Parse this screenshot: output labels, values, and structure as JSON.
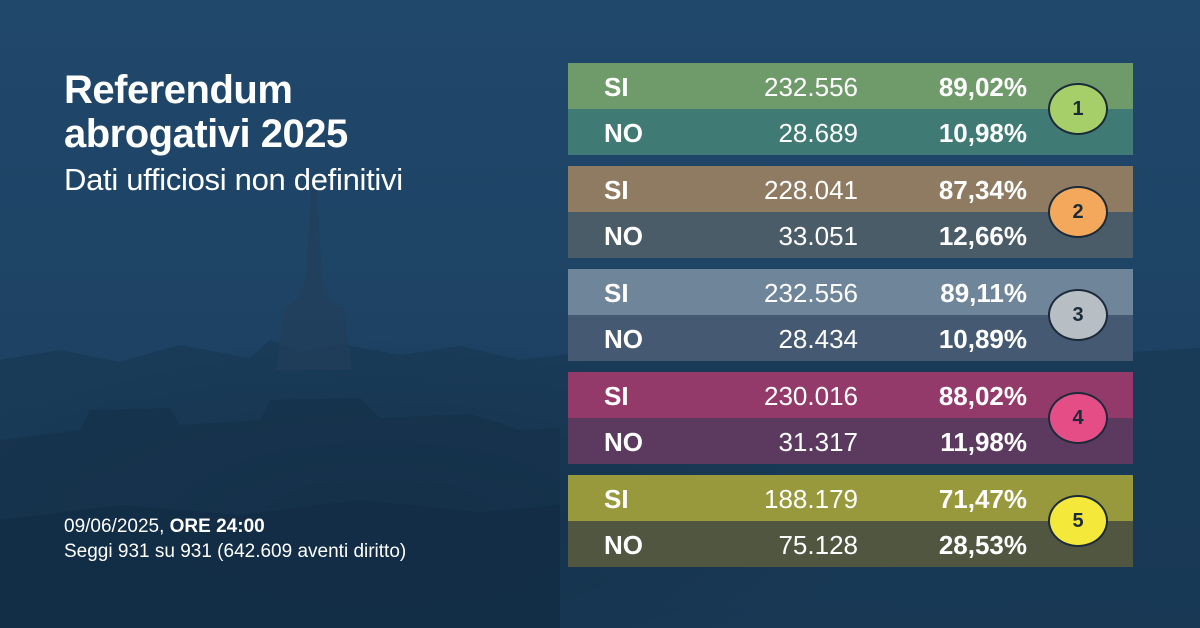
{
  "header": {
    "title_line1": "Referendum",
    "title_line2": "abrogativi 2025",
    "subtitle": "Dati ufficiosi non definitivi"
  },
  "footer": {
    "date": "09/06/2025, ",
    "time": "ORE 24:00",
    "seats": "Seggi 931 su 931 (642.609 aventi diritto)"
  },
  "results": [
    {
      "number": "1",
      "colors": {
        "si": "#6f9a6a",
        "no": "#3f7a74",
        "badge": "#a6cf6a"
      },
      "si": {
        "label": "SI",
        "votes": "232.556",
        "pct": "89,02%"
      },
      "no": {
        "label": "NO",
        "votes": "28.689",
        "pct": "10,98%"
      }
    },
    {
      "number": "2",
      "colors": {
        "si": "#8f7b62",
        "no": "#4a5c68",
        "badge": "#f3a85c"
      },
      "si": {
        "label": "SI",
        "votes": "228.041",
        "pct": "87,34%"
      },
      "no": {
        "label": "NO",
        "votes": "33.051",
        "pct": "12,66%"
      }
    },
    {
      "number": "3",
      "colors": {
        "si": "#6f8599",
        "no": "#455a72",
        "badge": "#b7bfc5"
      },
      "si": {
        "label": "SI",
        "votes": "232.556",
        "pct": "89,11%"
      },
      "no": {
        "label": "NO",
        "votes": "28.434",
        "pct": "10,89%"
      }
    },
    {
      "number": "4",
      "colors": {
        "si": "#943a6a",
        "no": "#5c3a60",
        "badge": "#e54d86"
      },
      "si": {
        "label": "SI",
        "votes": "230.016",
        "pct": "88,02%"
      },
      "no": {
        "label": "NO",
        "votes": "31.317",
        "pct": "11,98%"
      }
    },
    {
      "number": "5",
      "colors": {
        "si": "#98983c",
        "no": "#50563f",
        "badge": "#f4e83a"
      },
      "si": {
        "label": "SI",
        "votes": "188.179",
        "pct": "71,47%"
      },
      "no": {
        "label": "NO",
        "votes": "75.128",
        "pct": "28,53%"
      }
    }
  ]
}
